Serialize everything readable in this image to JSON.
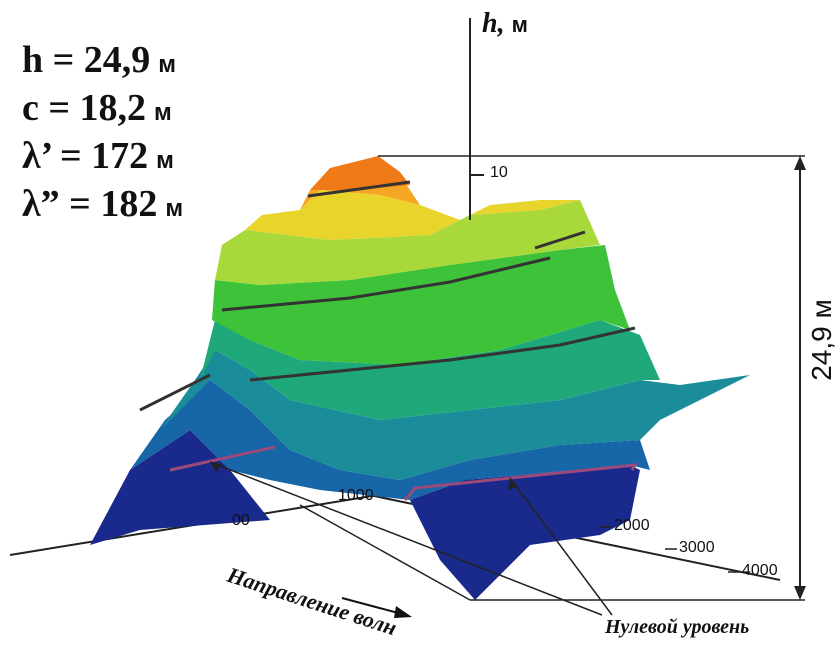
{
  "params": [
    {
      "text": "h = 24,9",
      "unit": "м"
    },
    {
      "text": "c = 18,2",
      "unit": "м"
    },
    {
      "text": "λ’ = 172",
      "unit": "м"
    },
    {
      "text": "λ” = 182",
      "unit": "м"
    }
  ],
  "axis": {
    "title": "h,",
    "title_unit": "м",
    "tick_10": "10",
    "tick_1000": "1000",
    "tick_2000": "2000",
    "tick_3000": "3000",
    "tick_4000": "4000",
    "tick_partial": "00"
  },
  "height_label": "24,9 м",
  "wave_direction_label": "Направление волн",
  "zero_level_label": "Нулевой уровень",
  "colors": {
    "peak": "#f07a18",
    "orange": "#f5a623",
    "yellow": "#e8d42a",
    "lightgreen": "#a8d83a",
    "green": "#3dc23a",
    "seagreen": "#1fa87a",
    "teal": "#1a8c9a",
    "blue": "#1766a8",
    "navy": "#1a2a8c",
    "zero_line": "#9c4a7a",
    "contour": "#333333"
  }
}
